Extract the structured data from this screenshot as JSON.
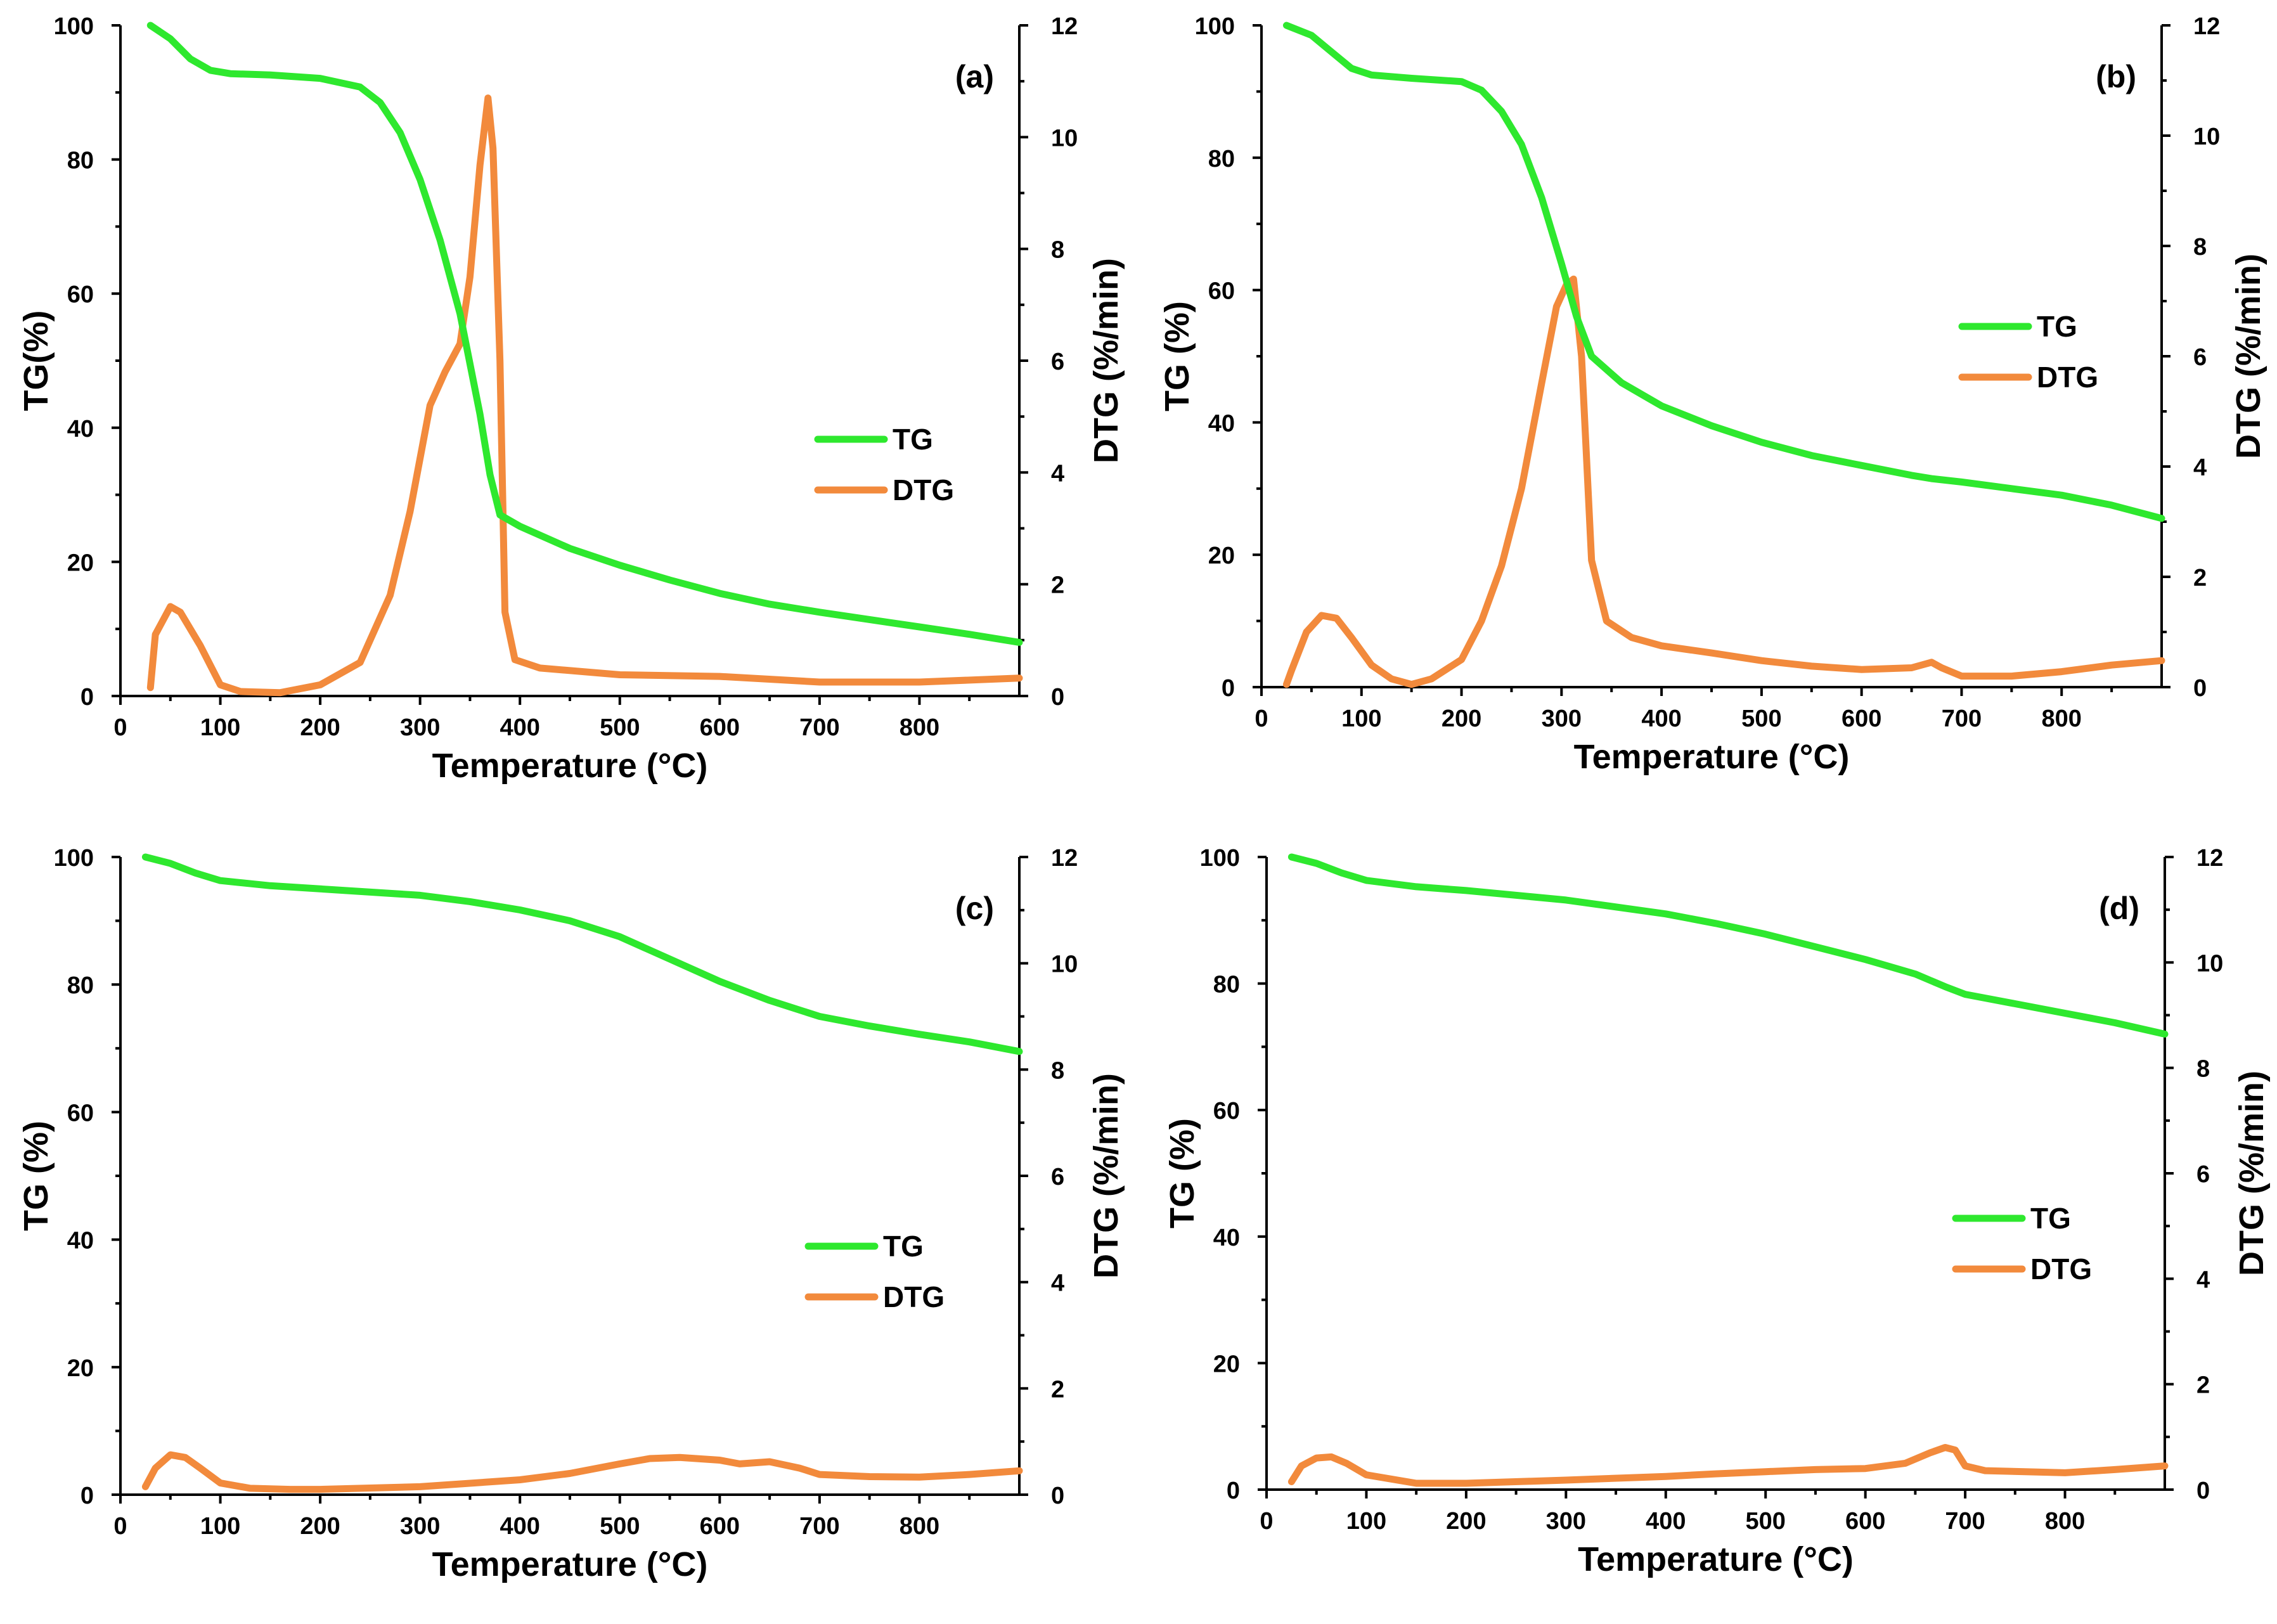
{
  "colors": {
    "tg": "#2ee82e",
    "dtg": "#f28a3c"
  },
  "chart_data": [
    {
      "type": "line",
      "panel_label": "(a)",
      "xlabel": "Temperature (°C)",
      "ylabel_left": "TG(%)",
      "ylabel_right": "DTG (%/min)",
      "xlim": [
        0,
        900
      ],
      "xticks": [
        0,
        100,
        200,
        300,
        400,
        500,
        600,
        700,
        800
      ],
      "ylim_left": [
        0,
        100
      ],
      "yticks_left": [
        0,
        20,
        40,
        60,
        80,
        100
      ],
      "ylim_right": [
        0,
        12
      ],
      "yticks_right": [
        0,
        2,
        4,
        6,
        8,
        10,
        12
      ],
      "legend": [
        "TG",
        "DTG"
      ],
      "legend_position": "middle-right",
      "series": [
        {
          "name": "TG",
          "axis": "left",
          "x": [
            30,
            50,
            70,
            90,
            110,
            150,
            200,
            240,
            260,
            280,
            300,
            320,
            340,
            360,
            370,
            380,
            400,
            450,
            500,
            550,
            600,
            650,
            700,
            750,
            800,
            850,
            900
          ],
          "y": [
            100,
            98,
            95,
            93.3,
            92.8,
            92.6,
            92.1,
            90.8,
            88.5,
            84,
            77,
            68,
            57,
            42,
            33,
            27,
            25.3,
            22,
            19.5,
            17.3,
            15.3,
            13.7,
            12.5,
            11.4,
            10.3,
            9.2,
            8
          ]
        },
        {
          "name": "DTG",
          "axis": "right",
          "x": [
            30,
            35,
            50,
            60,
            80,
            100,
            120,
            160,
            200,
            240,
            270,
            290,
            310,
            325,
            340,
            350,
            360,
            368,
            373,
            380,
            385,
            395,
            420,
            500,
            600,
            700,
            800,
            900
          ],
          "y": [
            0.15,
            1.1,
            1.6,
            1.5,
            0.9,
            0.2,
            0.08,
            0.06,
            0.2,
            0.6,
            1.8,
            3.3,
            5.2,
            5.8,
            6.3,
            7.5,
            9.5,
            10.7,
            9.8,
            6.0,
            1.5,
            0.65,
            0.5,
            0.38,
            0.35,
            0.25,
            0.25,
            0.32
          ]
        }
      ]
    },
    {
      "type": "line",
      "panel_label": "(b)",
      "xlabel": "Temperature (°C)",
      "ylabel_left": "TG (%)",
      "ylabel_right": "DTG (%/min)",
      "xlim": [
        0,
        900
      ],
      "xticks": [
        0,
        100,
        200,
        300,
        400,
        500,
        600,
        700,
        800
      ],
      "ylim_left": [
        0,
        100
      ],
      "yticks_left": [
        0,
        20,
        40,
        60,
        80,
        100
      ],
      "ylim_right": [
        0,
        12
      ],
      "yticks_right": [
        0,
        2,
        4,
        6,
        8,
        10,
        12
      ],
      "legend": [
        "TG",
        "DTG"
      ],
      "legend_position": "middle-right",
      "series": [
        {
          "name": "TG",
          "axis": "left",
          "x": [
            25,
            50,
            70,
            90,
            110,
            150,
            200,
            220,
            240,
            260,
            280,
            300,
            315,
            330,
            345,
            360,
            400,
            450,
            500,
            550,
            600,
            650,
            670,
            700,
            750,
            800,
            850,
            900
          ],
          "y": [
            100,
            98.5,
            96,
            93.5,
            92.5,
            92,
            91.5,
            90.2,
            87,
            82,
            74,
            64,
            56,
            50,
            48,
            46,
            42.5,
            39.5,
            37,
            35,
            33.5,
            32,
            31.5,
            31,
            30,
            29,
            27.5,
            25.5
          ]
        },
        {
          "name": "DTG",
          "axis": "right",
          "x": [
            25,
            30,
            45,
            60,
            75,
            90,
            110,
            130,
            150,
            170,
            200,
            220,
            240,
            260,
            280,
            295,
            305,
            312,
            320,
            330,
            345,
            370,
            400,
            450,
            500,
            550,
            600,
            650,
            670,
            680,
            700,
            750,
            800,
            850,
            900
          ],
          "y": [
            0.05,
            0.3,
            1.0,
            1.3,
            1.25,
            0.9,
            0.4,
            0.15,
            0.05,
            0.15,
            0.5,
            1.2,
            2.2,
            3.6,
            5.5,
            6.9,
            7.3,
            7.4,
            6.0,
            2.3,
            1.2,
            0.9,
            0.75,
            0.62,
            0.48,
            0.38,
            0.32,
            0.35,
            0.45,
            0.35,
            0.2,
            0.2,
            0.28,
            0.4,
            0.48
          ]
        }
      ]
    },
    {
      "type": "line",
      "panel_label": "(c)",
      "xlabel": "Temperature (°C)",
      "ylabel_left": "TG (%)",
      "ylabel_right": "DTG (%/min)",
      "xlim": [
        0,
        900
      ],
      "xticks": [
        0,
        100,
        200,
        300,
        400,
        500,
        600,
        700,
        800
      ],
      "ylim_left": [
        0,
        100
      ],
      "yticks_left": [
        0,
        20,
        40,
        60,
        80,
        100
      ],
      "ylim_right": [
        0,
        12
      ],
      "yticks_right": [
        0,
        2,
        4,
        6,
        8,
        10,
        12
      ],
      "legend": [
        "TG",
        "DTG"
      ],
      "legend_position": "middle-right",
      "series": [
        {
          "name": "TG",
          "axis": "left",
          "x": [
            25,
            50,
            75,
            100,
            150,
            200,
            300,
            350,
            400,
            450,
            500,
            550,
            600,
            650,
            700,
            750,
            800,
            850,
            900
          ],
          "y": [
            100,
            99,
            97.5,
            96.3,
            95.5,
            95,
            94,
            93,
            91.7,
            90,
            87.5,
            84,
            80.5,
            77.5,
            75,
            73.5,
            72.2,
            71,
            69.5
          ]
        },
        {
          "name": "DTG",
          "axis": "right",
          "x": [
            25,
            35,
            50,
            65,
            80,
            100,
            130,
            170,
            200,
            300,
            400,
            450,
            500,
            530,
            560,
            600,
            620,
            650,
            680,
            700,
            750,
            800,
            850,
            900
          ],
          "y": [
            0.15,
            0.5,
            0.75,
            0.7,
            0.5,
            0.22,
            0.12,
            0.1,
            0.1,
            0.15,
            0.28,
            0.4,
            0.58,
            0.68,
            0.7,
            0.65,
            0.58,
            0.62,
            0.5,
            0.38,
            0.34,
            0.33,
            0.38,
            0.45
          ]
        }
      ]
    },
    {
      "type": "line",
      "panel_label": "(d)",
      "xlabel": "Temperature (°C)",
      "ylabel_left": "TG (%)",
      "ylabel_right": "DTG (%/min)",
      "xlim": [
        0,
        900
      ],
      "xticks": [
        0,
        100,
        200,
        300,
        400,
        500,
        600,
        700,
        800
      ],
      "ylim_left": [
        0,
        100
      ],
      "yticks_left": [
        0,
        20,
        40,
        60,
        80,
        100
      ],
      "ylim_right": [
        0,
        12
      ],
      "yticks_right": [
        0,
        2,
        4,
        6,
        8,
        10,
        12
      ],
      "legend": [
        "TG",
        "DTG"
      ],
      "legend_position": "middle-right",
      "series": [
        {
          "name": "TG",
          "axis": "left",
          "x": [
            25,
            50,
            75,
            100,
            150,
            200,
            300,
            400,
            450,
            500,
            550,
            600,
            650,
            680,
            700,
            750,
            800,
            850,
            900
          ],
          "y": [
            100,
            99,
            97.5,
            96.3,
            95.3,
            94.7,
            93.2,
            91,
            89.5,
            87.8,
            85.8,
            83.8,
            81.5,
            79.5,
            78.3,
            76.8,
            75.3,
            73.8,
            72
          ]
        },
        {
          "name": "DTG",
          "axis": "right",
          "x": [
            25,
            35,
            50,
            65,
            80,
            100,
            150,
            200,
            300,
            400,
            450,
            500,
            550,
            600,
            640,
            665,
            680,
            690,
            700,
            720,
            800,
            850,
            900
          ],
          "y": [
            0.15,
            0.45,
            0.6,
            0.62,
            0.5,
            0.28,
            0.12,
            0.12,
            0.18,
            0.25,
            0.3,
            0.34,
            0.38,
            0.4,
            0.5,
            0.7,
            0.8,
            0.75,
            0.45,
            0.36,
            0.32,
            0.38,
            0.45
          ]
        }
      ]
    }
  ]
}
